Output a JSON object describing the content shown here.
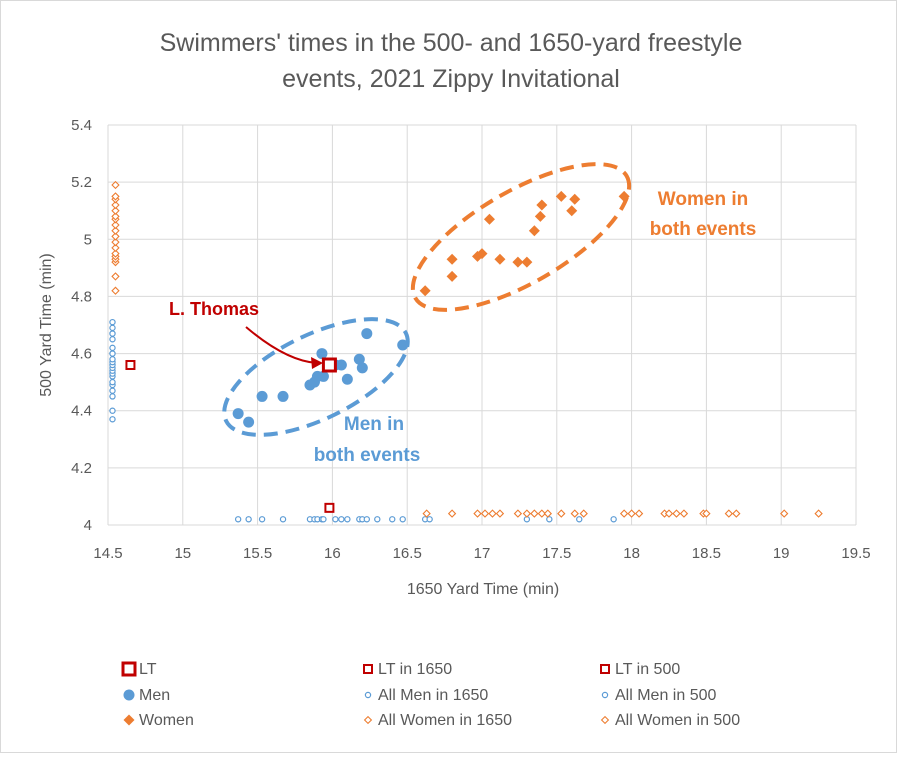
{
  "chart_data": {
    "type": "scatter",
    "title_line1": "Swimmers' times in the 500- and 1650-yard freestyle",
    "title_line2": "events, 2021 Zippy Invitational",
    "xlabel": "1650 Yard Time (min)",
    "ylabel": "500 Yard Time (min)",
    "xlim": [
      14.5,
      19.5
    ],
    "ylim": [
      4,
      5.4
    ],
    "xticks": [
      "14.5",
      "15",
      "15.5",
      "16",
      "16.5",
      "17",
      "17.5",
      "18",
      "18.5",
      "19",
      "19.5"
    ],
    "yticks": [
      "4",
      "4.2",
      "4.4",
      "4.6",
      "4.8",
      "5",
      "5.2",
      "5.4"
    ],
    "grid": true,
    "colors": {
      "men": "#5b9bd5",
      "women": "#ed7d31",
      "lt": "#c00000",
      "annotation_lt": "#c00000"
    },
    "annotations": {
      "lt_label": "L. Thomas",
      "men_line1": "Men in",
      "men_line2": "both events",
      "women_line1": "Women in",
      "women_line2": "both events"
    },
    "series": [
      {
        "name": "LT",
        "marker": "square-large",
        "points": [
          [
            15.98,
            4.56
          ]
        ]
      },
      {
        "name": "LT in 1650",
        "marker": "square-small",
        "points": [
          [
            15.98,
            4.06
          ]
        ]
      },
      {
        "name": "LT in 500",
        "marker": "square-small",
        "points": [
          [
            14.65,
            4.56
          ]
        ]
      },
      {
        "name": "Men",
        "marker": "circle-filled",
        "points": [
          [
            15.37,
            4.39
          ],
          [
            15.44,
            4.36
          ],
          [
            15.53,
            4.45
          ],
          [
            15.67,
            4.45
          ],
          [
            15.85,
            4.49
          ],
          [
            15.88,
            4.5
          ],
          [
            15.9,
            4.52
          ],
          [
            15.93,
            4.6
          ],
          [
            15.94,
            4.52
          ],
          [
            16.02,
            4.56
          ],
          [
            16.06,
            4.56
          ],
          [
            16.1,
            4.51
          ],
          [
            16.18,
            4.58
          ],
          [
            16.2,
            4.55
          ],
          [
            16.23,
            4.67
          ],
          [
            16.47,
            4.63
          ]
        ]
      },
      {
        "name": "All Men in 1650",
        "marker": "circle-open",
        "x_values": [
          15.37,
          15.44,
          15.53,
          15.67,
          15.85,
          15.88,
          15.9,
          15.93,
          15.94,
          16.02,
          16.06,
          16.1,
          16.18,
          16.2,
          16.23,
          16.3,
          16.4,
          16.47,
          16.62,
          16.65,
          17.3,
          17.45,
          17.65,
          17.88
        ],
        "y_baseline": 4.02
      },
      {
        "name": "All Men in 500",
        "marker": "circle-open",
        "y_values": [
          4.37,
          4.4,
          4.45,
          4.47,
          4.49,
          4.5,
          4.52,
          4.53,
          4.54,
          4.55,
          4.56,
          4.57,
          4.58,
          4.6,
          4.62,
          4.65,
          4.67,
          4.69,
          4.71
        ],
        "x_baseline": 14.53
      },
      {
        "name": "Women",
        "marker": "diamond-filled",
        "points": [
          [
            16.62,
            4.82
          ],
          [
            16.8,
            4.87
          ],
          [
            16.8,
            4.93
          ],
          [
            16.97,
            4.94
          ],
          [
            17.0,
            4.95
          ],
          [
            17.05,
            5.07
          ],
          [
            17.12,
            4.93
          ],
          [
            17.24,
            4.92
          ],
          [
            17.3,
            4.92
          ],
          [
            17.35,
            5.03
          ],
          [
            17.39,
            5.08
          ],
          [
            17.4,
            5.12
          ],
          [
            17.53,
            5.15
          ],
          [
            17.6,
            5.1
          ],
          [
            17.62,
            5.14
          ],
          [
            17.95,
            5.15
          ]
        ]
      },
      {
        "name": "All Women in 1650",
        "marker": "diamond-open",
        "x_values": [
          16.63,
          16.8,
          16.97,
          17.02,
          17.07,
          17.12,
          17.24,
          17.3,
          17.35,
          17.4,
          17.44,
          17.53,
          17.62,
          17.68,
          17.95,
          18.0,
          18.05,
          18.22,
          18.25,
          18.3,
          18.35,
          18.48,
          18.5,
          18.65,
          18.7,
          19.02,
          19.25
        ],
        "y_baseline": 4.04
      },
      {
        "name": "All Women in 500",
        "marker": "diamond-open",
        "y_values": [
          4.82,
          4.87,
          4.92,
          4.93,
          4.94,
          4.95,
          4.97,
          4.99,
          5.01,
          5.03,
          5.05,
          5.07,
          5.08,
          5.1,
          5.12,
          5.14,
          5.15,
          5.19
        ],
        "x_baseline": 14.55
      }
    ],
    "legend_placement": "bottom",
    "legend": [
      {
        "label": "LT",
        "marker": "square-large",
        "color": "#c00000"
      },
      {
        "label": "LT in 1650",
        "marker": "square-small",
        "color": "#c00000"
      },
      {
        "label": "LT in 500",
        "marker": "square-small",
        "color": "#c00000"
      },
      {
        "label": "Men",
        "marker": "circle-filled",
        "color": "#5b9bd5"
      },
      {
        "label": "All Men in 1650",
        "marker": "circle-open",
        "color": "#5b9bd5"
      },
      {
        "label": "All Men in 500",
        "marker": "circle-open",
        "color": "#5b9bd5"
      },
      {
        "label": "Women",
        "marker": "diamond-filled",
        "color": "#ed7d31"
      },
      {
        "label": "All Women in 1650",
        "marker": "diamond-open",
        "color": "#ed7d31"
      },
      {
        "label": "All Women in 500",
        "marker": "diamond-open",
        "color": "#ed7d31"
      }
    ]
  }
}
